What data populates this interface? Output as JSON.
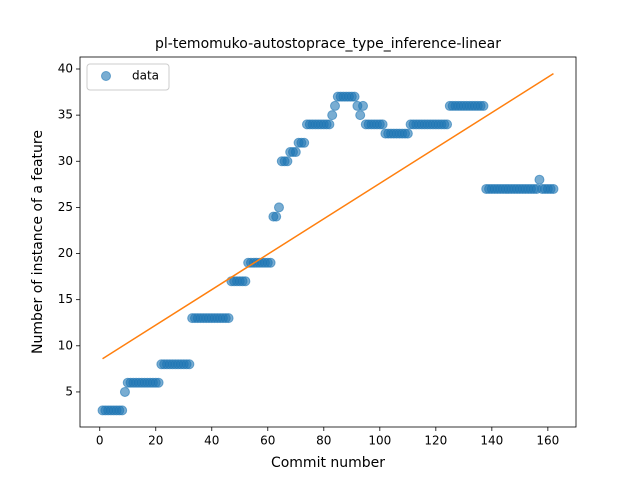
{
  "chart_data": {
    "type": "scatter",
    "title": "pl-temomuko-autostoprace_type_inference-linear",
    "x_label": "Commit number",
    "y_label": "Number of instance of a feature",
    "legend": "upper left",
    "series": [
      {
        "name": "data",
        "color": "#1f77b4",
        "x": [
          1,
          2,
          3,
          4,
          5,
          6,
          7,
          8,
          9,
          10,
          11,
          12,
          13,
          14,
          15,
          16,
          17,
          18,
          19,
          20,
          21,
          22,
          23,
          24,
          25,
          26,
          27,
          28,
          29,
          30,
          31,
          32,
          33,
          34,
          35,
          36,
          37,
          38,
          39,
          40,
          41,
          42,
          43,
          44,
          45,
          46,
          47,
          48,
          49,
          50,
          51,
          52,
          53,
          54,
          55,
          56,
          57,
          58,
          59,
          60,
          61,
          62,
          63,
          64,
          65,
          66,
          67,
          68,
          69,
          70,
          71,
          72,
          73,
          74,
          75,
          76,
          77,
          78,
          79,
          80,
          81,
          82,
          83,
          84,
          85,
          86,
          87,
          88,
          89,
          90,
          91,
          92,
          93,
          94,
          95,
          96,
          97,
          98,
          99,
          100,
          101,
          102,
          103,
          104,
          105,
          106,
          107,
          108,
          109,
          110,
          111,
          112,
          113,
          114,
          115,
          116,
          117,
          118,
          119,
          120,
          121,
          122,
          123,
          124,
          125,
          126,
          127,
          128,
          129,
          130,
          131,
          132,
          133,
          134,
          135,
          136,
          137,
          138,
          139,
          140,
          141,
          142,
          143,
          144,
          145,
          146,
          147,
          148,
          149,
          150,
          151,
          152,
          153,
          154,
          155,
          156,
          157,
          158,
          159,
          160,
          161,
          162
        ],
        "values": [
          3,
          3,
          3,
          3,
          3,
          3,
          3,
          3,
          5,
          6,
          6,
          6,
          6,
          6,
          6,
          6,
          6,
          6,
          6,
          6,
          6,
          8,
          8,
          8,
          8,
          8,
          8,
          8,
          8,
          8,
          8,
          8,
          13,
          13,
          13,
          13,
          13,
          13,
          13,
          13,
          13,
          13,
          13,
          13,
          13,
          13,
          17,
          17,
          17,
          17,
          17,
          17,
          19,
          19,
          19,
          19,
          19,
          19,
          19,
          19,
          19,
          24,
          24,
          25,
          30,
          30,
          30,
          31,
          31,
          31,
          32,
          32,
          32,
          34,
          34,
          34,
          34,
          34,
          34,
          34,
          34,
          34,
          35,
          36,
          37,
          37,
          37,
          37,
          37,
          37,
          37,
          36,
          35,
          36,
          34,
          34,
          34,
          34,
          34,
          34,
          34,
          33,
          33,
          33,
          33,
          33,
          33,
          33,
          33,
          33,
          34,
          34,
          34,
          34,
          34,
          34,
          34,
          34,
          34,
          34,
          34,
          34,
          34,
          34,
          36,
          36,
          36,
          36,
          36,
          36,
          36,
          36,
          36,
          36,
          36,
          36,
          36,
          27,
          27,
          27,
          27,
          27,
          27,
          27,
          27,
          27,
          27,
          27,
          27,
          27,
          27,
          27,
          27,
          27,
          27,
          27,
          28,
          27,
          27,
          27,
          27,
          27
        ]
      }
    ],
    "fit": {
      "color": "#ff7f0e",
      "x": [
        1,
        162
      ],
      "values": [
        8.6,
        39.5
      ]
    },
    "xlim": [
      -7.05,
      170.05
    ],
    "ylim": [
      1.2,
      41.3
    ],
    "xticks": [
      0,
      20,
      40,
      60,
      80,
      100,
      120,
      140,
      160
    ],
    "yticks": [
      5,
      10,
      15,
      20,
      25,
      30,
      35,
      40
    ]
  }
}
